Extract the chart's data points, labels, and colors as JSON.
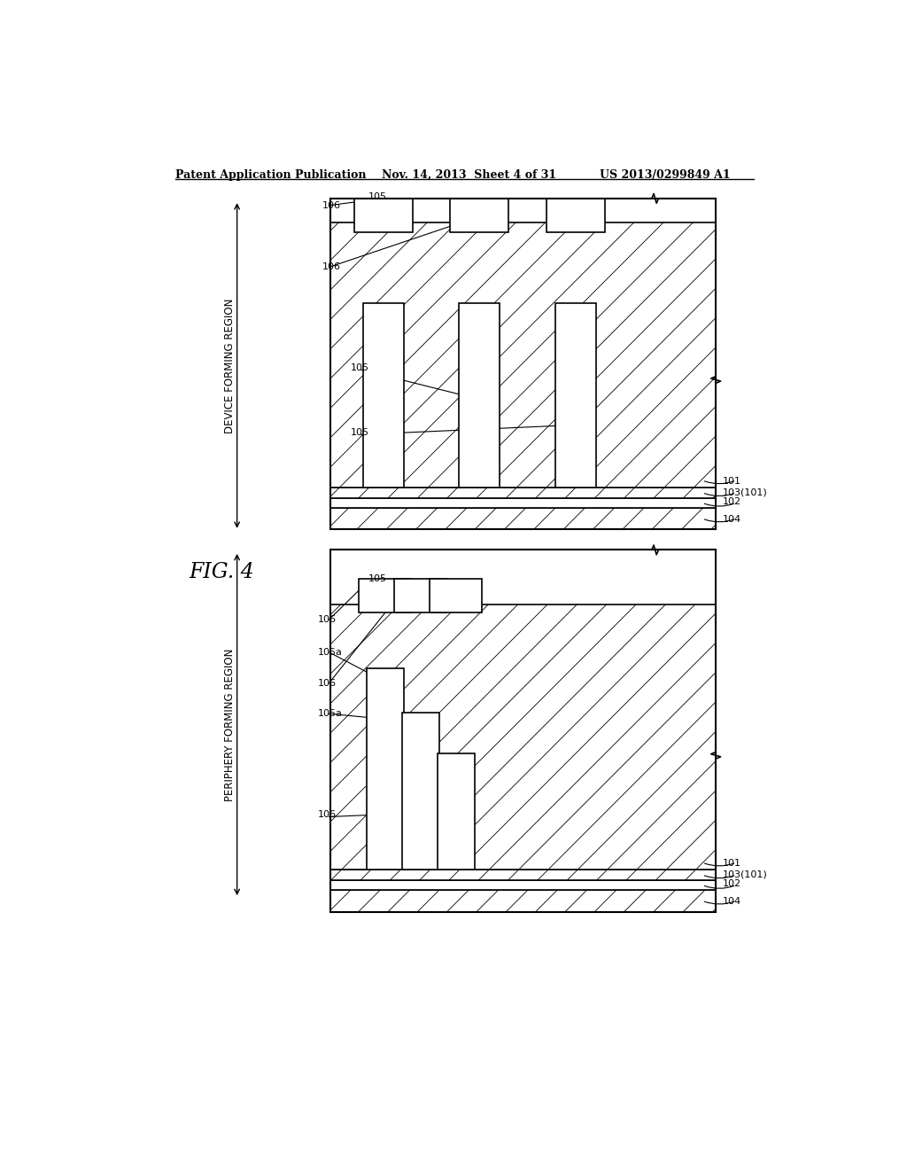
{
  "title_left": "Patent Application Publication",
  "title_mid": "Nov. 14, 2013  Sheet 4 of 31",
  "title_right": "US 2013/0299849 A1",
  "fig_label": "FIG. 4",
  "device_region_label": "DEVICE FORMING REGION",
  "periphery_region_label": "PERIPHERY FORMING REGION",
  "bg_color": "#ffffff",
  "line_color": "#000000",
  "label_101": "101",
  "label_102": "102",
  "label_103": "103(101)",
  "label_104": "104",
  "label_105": "105",
  "label_106": "106",
  "label_105a": "105a"
}
